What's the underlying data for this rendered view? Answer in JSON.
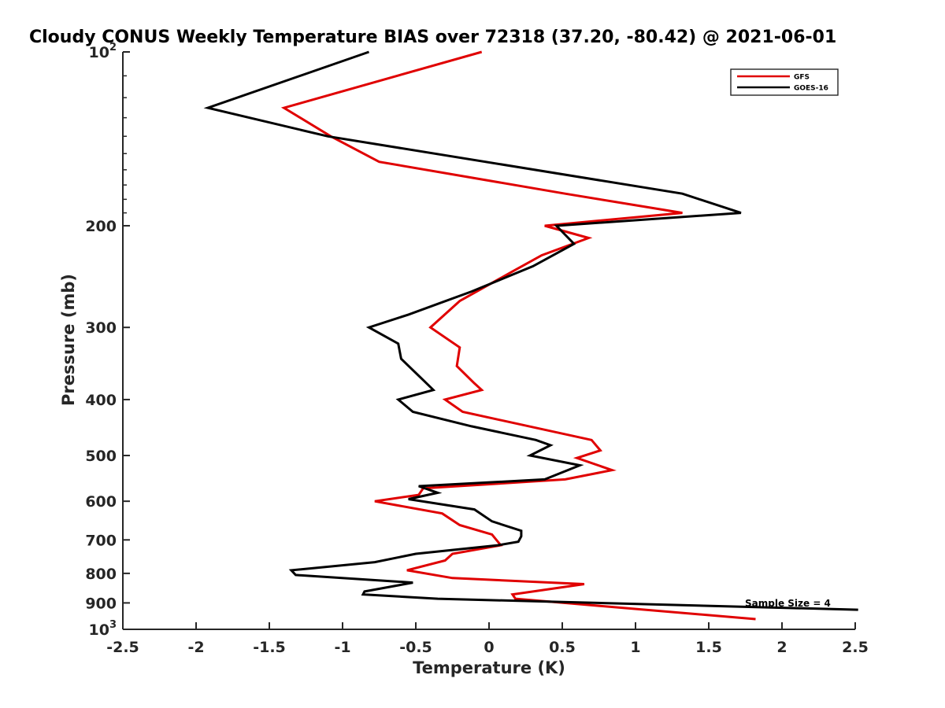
{
  "chart_data": {
    "type": "line",
    "title": "Cloudy CONUS Weekly Temperature BIAS over 72318 (37.20, -80.42) @ 2021-06-01",
    "xlabel": "Temperature (K)",
    "ylabel": "Pressure (mb)",
    "xlim": [
      -2.5,
      2.5
    ],
    "ylim": [
      100,
      1000
    ],
    "y_scale": "log",
    "y_reversed": true,
    "grid": false,
    "x_ticks": [
      "-2.5",
      "-2",
      "-1.5",
      "-1",
      "-0.5",
      "0",
      "0.5",
      "1",
      "1.5",
      "2",
      "2.5"
    ],
    "y_ticks": [
      {
        "value": 100,
        "base": "10",
        "exp": "2"
      },
      {
        "value": 200,
        "label": "200"
      },
      {
        "value": 300,
        "label": "300"
      },
      {
        "value": 400,
        "label": "400"
      },
      {
        "value": 500,
        "label": "500"
      },
      {
        "value": 600,
        "label": "600"
      },
      {
        "value": 700,
        "label": "700"
      },
      {
        "value": 800,
        "label": "800"
      },
      {
        "value": 900,
        "label": "900"
      },
      {
        "value": 1000,
        "base": "10",
        "exp": "3"
      }
    ],
    "legend": {
      "position": "top-right"
    },
    "annotation": "Sample Size = 4",
    "series": [
      {
        "name": "GFS",
        "color": "#e00000",
        "points": [
          [
            -0.05,
            100
          ],
          [
            -1.4,
            125
          ],
          [
            -1.08,
            140
          ],
          [
            -0.75,
            155
          ],
          [
            0.52,
            176
          ],
          [
            1.32,
            190
          ],
          [
            0.38,
            200
          ],
          [
            0.68,
            210
          ],
          [
            0.36,
            225
          ],
          [
            0.16,
            240
          ],
          [
            -0.2,
            270
          ],
          [
            -0.4,
            300
          ],
          [
            -0.2,
            325
          ],
          [
            -0.22,
            350
          ],
          [
            -0.1,
            375
          ],
          [
            -0.05,
            385
          ],
          [
            -0.3,
            400
          ],
          [
            -0.18,
            420
          ],
          [
            0.7,
            470
          ],
          [
            0.76,
            490
          ],
          [
            0.6,
            505
          ],
          [
            0.84,
            530
          ],
          [
            0.52,
            550
          ],
          [
            -0.45,
            570
          ],
          [
            -0.48,
            585
          ],
          [
            -0.78,
            600
          ],
          [
            -0.32,
            630
          ],
          [
            -0.2,
            660
          ],
          [
            0.02,
            685
          ],
          [
            0.08,
            715
          ],
          [
            -0.25,
            740
          ],
          [
            -0.3,
            760
          ],
          [
            -0.56,
            790
          ],
          [
            -0.25,
            815
          ],
          [
            0.65,
            835
          ],
          [
            0.16,
            870
          ],
          [
            0.18,
            885
          ],
          [
            1.82,
            960
          ]
        ]
      },
      {
        "name": "GOES-16",
        "color": "#000000",
        "points": [
          [
            -0.82,
            100
          ],
          [
            -1.92,
            125
          ],
          [
            -1.1,
            140
          ],
          [
            1.32,
            176
          ],
          [
            1.72,
            190
          ],
          [
            0.46,
            200
          ],
          [
            0.58,
            215
          ],
          [
            0.3,
            235
          ],
          [
            -0.12,
            260
          ],
          [
            -0.55,
            285
          ],
          [
            -0.82,
            300
          ],
          [
            -0.62,
            320
          ],
          [
            -0.6,
            340
          ],
          [
            -0.45,
            370
          ],
          [
            -0.38,
            385
          ],
          [
            -0.62,
            400
          ],
          [
            -0.52,
            420
          ],
          [
            -0.12,
            445
          ],
          [
            0.32,
            470
          ],
          [
            0.42,
            480
          ],
          [
            0.28,
            500
          ],
          [
            0.62,
            520
          ],
          [
            0.38,
            550
          ],
          [
            -0.48,
            565
          ],
          [
            -0.35,
            580
          ],
          [
            -0.55,
            595
          ],
          [
            -0.1,
            620
          ],
          [
            0.02,
            650
          ],
          [
            0.22,
            675
          ],
          [
            0.22,
            690
          ],
          [
            0.2,
            705
          ],
          [
            0.06,
            715
          ],
          [
            -0.5,
            740
          ],
          [
            -0.78,
            765
          ],
          [
            -1.35,
            790
          ],
          [
            -1.32,
            805
          ],
          [
            -0.52,
            830
          ],
          [
            -0.85,
            860
          ],
          [
            -0.86,
            870
          ],
          [
            -0.35,
            885
          ],
          [
            2.52,
            925
          ]
        ]
      }
    ]
  }
}
